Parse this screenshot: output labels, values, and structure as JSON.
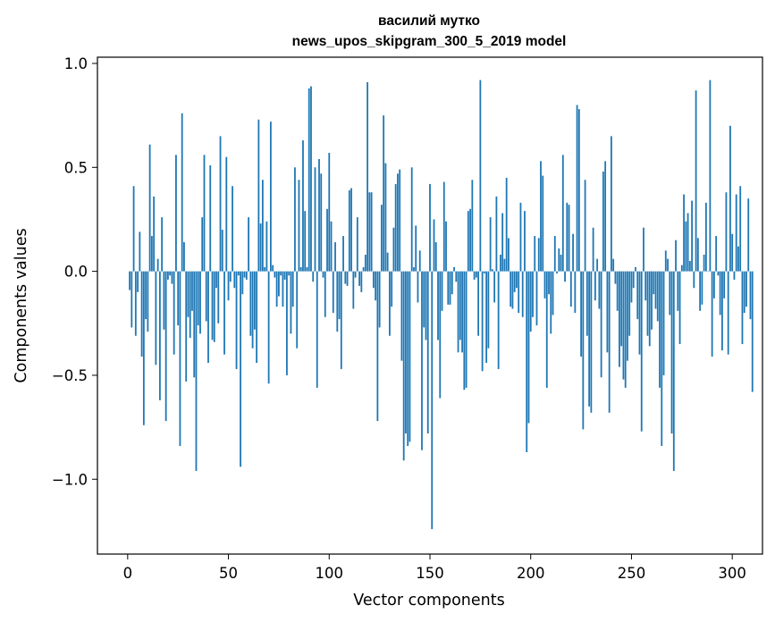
{
  "chart_data": {
    "type": "bar",
    "title_line1": "василий мутко",
    "title_line2": "news_upos_skipgram_300_5_2019 model",
    "xlabel": "Vector components",
    "ylabel": "Components values",
    "xlim": [
      -15,
      315
    ],
    "ylim": [
      -1.36,
      1.03
    ],
    "xticks": [
      0,
      50,
      100,
      150,
      200,
      250,
      300
    ],
    "xtick_labels": [
      "0",
      "50",
      "100",
      "150",
      "200",
      "250",
      "300"
    ],
    "yticks": [
      -1.0,
      -0.5,
      0.0,
      0.5,
      1.0
    ],
    "ytick_labels": [
      "−1.0",
      "−0.5",
      "0.0",
      "0.5",
      "1.0"
    ],
    "grid": false,
    "bar_color": "#1f77b4",
    "values": [
      -0.09,
      -0.27,
      0.41,
      -0.31,
      -0.1,
      0.19,
      -0.41,
      -0.74,
      -0.23,
      -0.29,
      0.61,
      0.17,
      0.36,
      -0.45,
      0.06,
      -0.62,
      0.26,
      -0.28,
      -0.72,
      -0.04,
      -0.02,
      -0.06,
      -0.4,
      0.56,
      -0.26,
      -0.84,
      0.76,
      0.14,
      -0.53,
      -0.22,
      -0.32,
      -0.19,
      -0.51,
      -0.96,
      -0.26,
      -0.3,
      0.26,
      0.56,
      -0.24,
      -0.44,
      0.51,
      -0.33,
      -0.34,
      -0.08,
      -0.25,
      0.65,
      0.2,
      -0.4,
      0.55,
      -0.14,
      -0.05,
      0.41,
      -0.08,
      -0.47,
      -0.02,
      -0.94,
      -0.11,
      -0.03,
      -0.04,
      0.26,
      -0.31,
      -0.37,
      -0.28,
      -0.44,
      0.73,
      0.23,
      0.44,
      0.02,
      0.24,
      -0.54,
      0.72,
      0.03,
      -0.03,
      -0.17,
      -0.12,
      -0.02,
      -0.17,
      -0.04,
      -0.5,
      -0.02,
      -0.3,
      -0.17,
      0.5,
      -0.37,
      0.44,
      0.02,
      0.63,
      0.29,
      0.02,
      0.88,
      0.89,
      -0.05,
      0.5,
      -0.56,
      0.54,
      0.47,
      -0.03,
      -0.22,
      0.3,
      0.57,
      0.24,
      -0.2,
      0.14,
      -0.29,
      -0.23,
      -0.47,
      0.17,
      -0.06,
      -0.07,
      0.39,
      0.4,
      -0.18,
      -0.03,
      0.26,
      -0.07,
      -0.1,
      0.02,
      0.08,
      0.91,
      0.38,
      0.38,
      -0.08,
      -0.14,
      -0.72,
      -0.27,
      0.32,
      0.75,
      0.52,
      0.09,
      -0.31,
      -0.17,
      0.21,
      0.42,
      0.47,
      0.49,
      -0.43,
      -0.91,
      -0.78,
      -0.84,
      -0.82,
      0.5,
      0.02,
      0.22,
      -0.15,
      0.1,
      -0.86,
      -0.27,
      -0.33,
      -0.78,
      0.42,
      -1.24,
      0.25,
      0.14,
      -0.33,
      -0.61,
      -0.19,
      0.43,
      0.24,
      -0.16,
      -0.16,
      -0.11,
      0.02,
      -0.05,
      -0.39,
      -0.33,
      -0.39,
      -0.57,
      -0.56,
      0.29,
      0.3,
      0.44,
      -0.04,
      -0.03,
      -0.31,
      0.92,
      -0.48,
      -0.01,
      -0.44,
      -0.37,
      0.26,
      0.01,
      -0.15,
      0.36,
      -0.47,
      0.08,
      0.28,
      0.06,
      0.45,
      0.16,
      -0.17,
      -0.18,
      -0.1,
      -0.08,
      -0.2,
      0.33,
      -0.22,
      0.29,
      -0.87,
      -0.73,
      -0.29,
      -0.22,
      0.17,
      -0.26,
      0.16,
      0.53,
      0.46,
      -0.13,
      -0.56,
      -0.11,
      -0.3,
      -0.21,
      0.17,
      -0.01,
      0.11,
      0.08,
      0.56,
      -0.05,
      0.33,
      0.32,
      -0.17,
      0.18,
      -0.2,
      0.8,
      0.78,
      -0.41,
      -0.76,
      0.44,
      -0.31,
      -0.65,
      -0.68,
      0.21,
      -0.14,
      0.06,
      -0.18,
      -0.51,
      0.48,
      0.53,
      -0.39,
      -0.68,
      0.65,
      0.06,
      -0.06,
      -0.19,
      -0.46,
      -0.36,
      -0.52,
      -0.56,
      -0.43,
      -0.31,
      -0.15,
      -0.08,
      0.02,
      -0.23,
      -0.4,
      -0.77,
      0.21,
      -0.14,
      -0.31,
      -0.36,
      -0.28,
      -0.11,
      -0.18,
      -0.24,
      -0.56,
      -0.84,
      -0.5,
      0.1,
      0.06,
      -0.21,
      -0.78,
      -0.96,
      0.15,
      -0.19,
      -0.35,
      0.03,
      0.37,
      0.24,
      0.28,
      0.05,
      0.34,
      -0.08,
      0.87,
      0.16,
      -0.19,
      -0.16,
      0.08,
      0.33,
      0.0,
      0.92,
      -0.41,
      -0.13,
      0.17,
      -0.02,
      -0.21,
      -0.38,
      -0.13,
      0.38,
      -0.4,
      0.7,
      0.18,
      -0.04,
      0.37,
      0.12,
      0.41,
      -0.35,
      -0.2,
      -0.17,
      0.35,
      -0.23,
      -0.58
    ]
  }
}
